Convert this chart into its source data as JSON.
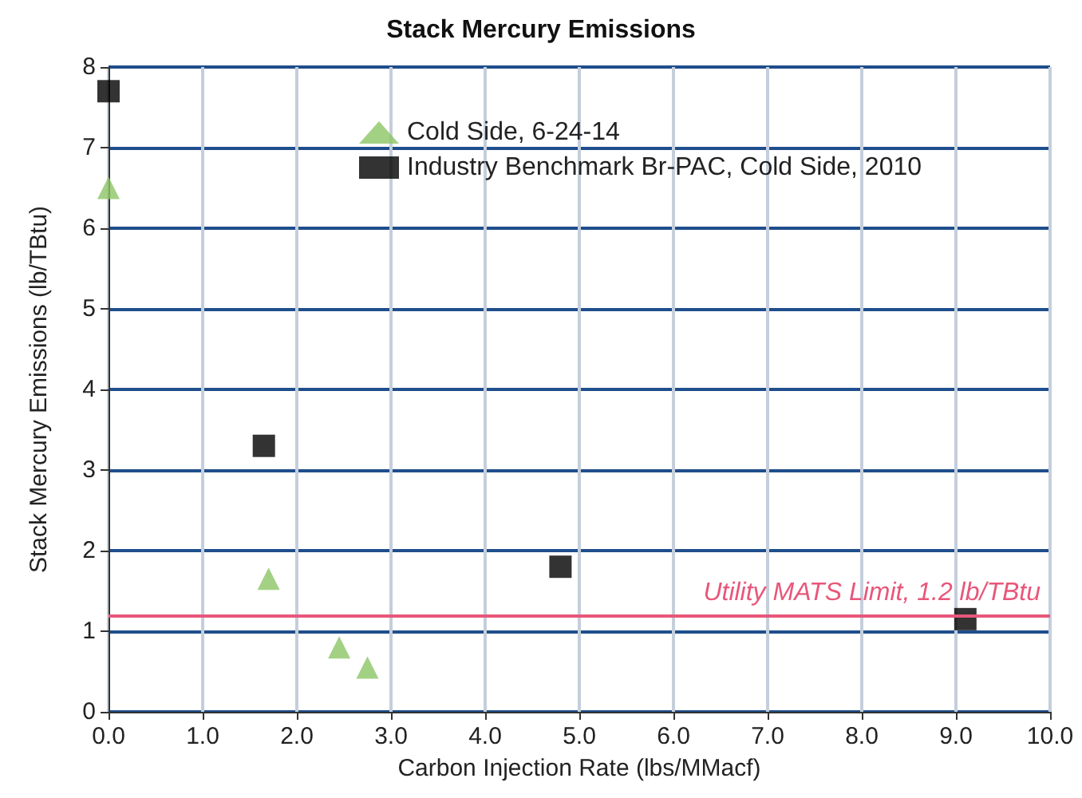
{
  "chart_data": {
    "type": "scatter",
    "title": "Stack Mercury Emissions",
    "xlabel": "Carbon Injection Rate (lbs/MMacf)",
    "ylabel": "Stack Mercury Emissions (lb/TBtu)",
    "series": [
      {
        "name": "Cold Side, 6-24-14",
        "color": "#8cc665",
        "marker": "triangle",
        "x": [
          0.0,
          1.7,
          2.45,
          2.75
        ],
        "values": [
          6.5,
          1.65,
          0.8,
          0.55
        ]
      },
      {
        "name": "Industry Benchmark Br-PAC, Cold Side, 2010",
        "color": "#000000",
        "marker": "square",
        "x": [
          0.0,
          1.65,
          4.8,
          9.1
        ],
        "values": [
          7.7,
          3.3,
          1.8,
          1.15
        ]
      }
    ],
    "xlim": [
      0,
      10
    ],
    "xticks": [
      {
        "value": 0,
        "label": "0.0"
      },
      {
        "value": 1,
        "label": "1.0"
      },
      {
        "value": 2,
        "label": "2.0"
      },
      {
        "value": 3,
        "label": "3.0"
      },
      {
        "value": 4,
        "label": "4.0"
      },
      {
        "value": 5,
        "label": "5.0"
      },
      {
        "value": 6,
        "label": "6.0"
      },
      {
        "value": 7,
        "label": "7.0"
      },
      {
        "value": 8,
        "label": "8.0"
      },
      {
        "value": 9,
        "label": "9.0"
      },
      {
        "value": 10,
        "label": "10.0"
      }
    ],
    "ylim": [
      0,
      8
    ],
    "yticks": [
      0,
      1,
      2,
      3,
      4,
      5,
      6,
      7,
      8
    ],
    "ref_lines": [
      {
        "axis": "y",
        "value": 1.2,
        "label": "Utility MATS Limit, 1.2 lb/TBtu",
        "color": "#e8577a"
      }
    ],
    "grid": true,
    "legend": "top"
  }
}
